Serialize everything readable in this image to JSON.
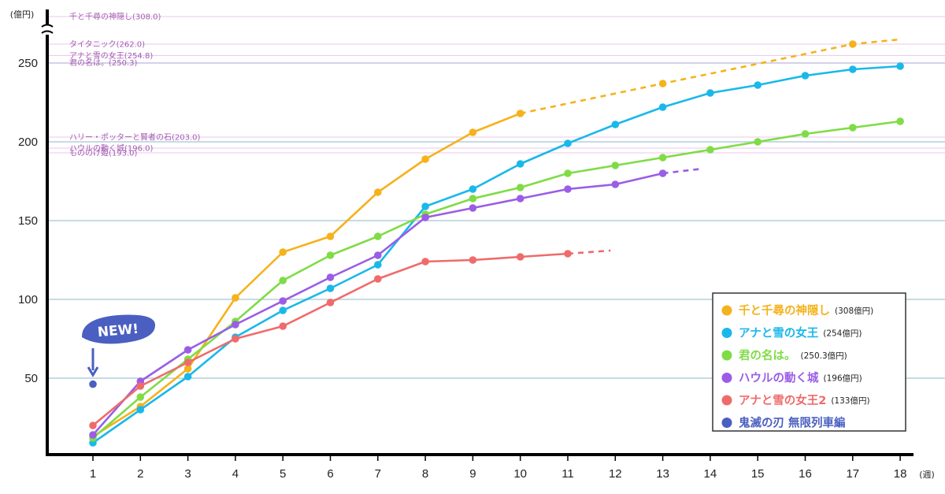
{
  "chart_data": {
    "type": "line",
    "y_unit": "(億円)",
    "x_unit": "(週)",
    "x": [
      1,
      2,
      3,
      4,
      5,
      6,
      7,
      8,
      9,
      10,
      11,
      12,
      13,
      14,
      15,
      16,
      17,
      18
    ],
    "y_ticks": [
      50,
      100,
      150,
      200,
      250
    ],
    "ylim": [
      0,
      290
    ],
    "xlim": [
      0,
      18.6
    ],
    "grid": true,
    "legend_position": "bottom-right",
    "reference_lines": [
      {
        "label": "千と千尋の神隠し(308.0)",
        "value": 308.0,
        "above_break": true
      },
      {
        "label": "タイタニック(262.0)",
        "value": 262.0
      },
      {
        "label": "アナと雪の女王(254.8)",
        "value": 254.8
      },
      {
        "label": "君の名は。(250.3)",
        "value": 250.3
      },
      {
        "label": "ハリー・ポッターと賢者の石(203.0)",
        "value": 203.0
      },
      {
        "label": "ハウルの動く城(196.0)",
        "value": 196.0
      },
      {
        "label": "もののけ姫(193.0)",
        "value": 193.0
      }
    ],
    "series": [
      {
        "name": "千と千尋の神隠し",
        "total": "(308億円)",
        "color": "#f5b21b",
        "points": [
          [
            1,
            13
          ],
          [
            2,
            32
          ],
          [
            3,
            56
          ],
          [
            4,
            101
          ],
          [
            5,
            130
          ],
          [
            6,
            140
          ],
          [
            7,
            168
          ],
          [
            8,
            189
          ],
          [
            9,
            206
          ],
          [
            10,
            218
          ],
          [
            13,
            237
          ],
          [
            17,
            262
          ]
        ],
        "dashed_from_index": 9,
        "dash_to": [
          18,
          265
        ]
      },
      {
        "name": "アナと雪の女王",
        "total": "(254億円)",
        "color": "#1ab8ea",
        "points": [
          [
            1,
            9
          ],
          [
            2,
            30
          ],
          [
            3,
            51
          ],
          [
            4,
            76
          ],
          [
            5,
            93
          ],
          [
            6,
            107
          ],
          [
            7,
            122
          ],
          [
            8,
            159
          ],
          [
            9,
            170
          ],
          [
            10,
            186
          ],
          [
            11,
            199
          ],
          [
            12,
            211
          ],
          [
            13,
            222
          ],
          [
            14,
            231
          ],
          [
            15,
            236
          ],
          [
            16,
            242
          ],
          [
            17,
            246
          ],
          [
            18,
            248
          ]
        ]
      },
      {
        "name": "君の名は。",
        "total": "(250.3億円)",
        "color": "#7fdc45",
        "points": [
          [
            1,
            12
          ],
          [
            2,
            38
          ],
          [
            3,
            62
          ],
          [
            4,
            86
          ],
          [
            5,
            112
          ],
          [
            6,
            128
          ],
          [
            7,
            140
          ],
          [
            8,
            154
          ],
          [
            9,
            164
          ],
          [
            10,
            171
          ],
          [
            11,
            180
          ],
          [
            12,
            185
          ],
          [
            13,
            190
          ],
          [
            14,
            195
          ],
          [
            15,
            200
          ],
          [
            16,
            205
          ],
          [
            17,
            209
          ],
          [
            18,
            213
          ]
        ]
      },
      {
        "name": "ハウルの動く城",
        "total": "(196億円)",
        "color": "#9b5de5",
        "points": [
          [
            1,
            14
          ],
          [
            2,
            48
          ],
          [
            3,
            68
          ],
          [
            4,
            84
          ],
          [
            5,
            99
          ],
          [
            6,
            114
          ],
          [
            7,
            128
          ],
          [
            8,
            152
          ],
          [
            9,
            158
          ],
          [
            10,
            164
          ],
          [
            11,
            170
          ],
          [
            12,
            173
          ],
          [
            13,
            180
          ]
        ],
        "dash_to": [
          13.85,
          183
        ]
      },
      {
        "name": "アナと雪の女王2",
        "total": "(133億円)",
        "color": "#ef6b6b",
        "points": [
          [
            1,
            20
          ],
          [
            2,
            45
          ],
          [
            3,
            60
          ],
          [
            4,
            75
          ],
          [
            5,
            83
          ],
          [
            6,
            98
          ],
          [
            7,
            113
          ],
          [
            8,
            124
          ],
          [
            9,
            125
          ],
          [
            10,
            127
          ],
          [
            11,
            129
          ]
        ],
        "dash_to": [
          11.9,
          131
        ]
      },
      {
        "name": "鬼滅の刃 無限列車編",
        "total": "",
        "color": "#4a5fc1",
        "points": [
          [
            1,
            46.2
          ]
        ]
      }
    ],
    "annotation": {
      "text": "NEW!",
      "x": 1
    }
  }
}
